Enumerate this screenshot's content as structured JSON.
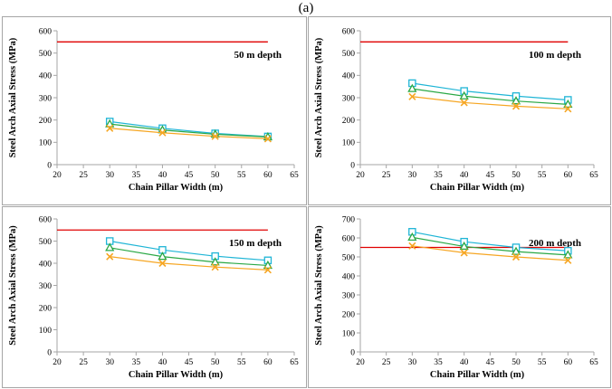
{
  "figure_label": "(a)",
  "colors": {
    "limit": "#e00000",
    "series_square": "#1fb5d6",
    "series_triangle": "#2aa845",
    "series_cross": "#f6a623",
    "frame": "#a6a6a6"
  },
  "chart_data": [
    {
      "type": "line",
      "title": "50 m depth",
      "xlabel": "Chain Pillar Width (m)",
      "ylabel": "Steel Arch Axial Stress (MPa)",
      "xlim": [
        20,
        65
      ],
      "ylim": [
        0,
        600
      ],
      "xticks": [
        20,
        25,
        30,
        35,
        40,
        45,
        50,
        55,
        60,
        65
      ],
      "yticks": [
        0,
        100,
        200,
        300,
        400,
        500,
        600
      ],
      "limit_line": {
        "value": 550,
        "x": [
          20,
          60
        ]
      },
      "x": [
        30,
        40,
        50,
        60
      ],
      "series": [
        {
          "marker": "square",
          "values": [
            193,
            163,
            140,
            126
          ]
        },
        {
          "marker": "triangle",
          "values": [
            182,
            155,
            136,
            124
          ]
        },
        {
          "marker": "cross",
          "values": [
            163,
            143,
            127,
            116
          ]
        }
      ]
    },
    {
      "type": "line",
      "title": "100 m depth",
      "xlabel": "Chain Pillar Width (m)",
      "ylabel": "Steel Arch Axial Stress (MPa)",
      "xlim": [
        20,
        65
      ],
      "ylim": [
        0,
        600
      ],
      "xticks": [
        20,
        25,
        30,
        35,
        40,
        45,
        50,
        55,
        60,
        65
      ],
      "yticks": [
        0,
        100,
        200,
        300,
        400,
        500,
        600
      ],
      "limit_line": {
        "value": 550,
        "x": [
          20,
          60
        ]
      },
      "x": [
        30,
        40,
        50,
        60
      ],
      "series": [
        {
          "marker": "square",
          "values": [
            365,
            330,
            307,
            290
          ]
        },
        {
          "marker": "triangle",
          "values": [
            340,
            307,
            285,
            270
          ]
        },
        {
          "marker": "cross",
          "values": [
            305,
            278,
            262,
            250
          ]
        }
      ]
    },
    {
      "type": "line",
      "title": "150 m depth",
      "xlabel": "Chain Pillar Width (m)",
      "ylabel": "Steel Arch Axial Stress (MPa)",
      "xlim": [
        20,
        65
      ],
      "ylim": [
        0,
        600
      ],
      "xticks": [
        20,
        25,
        30,
        35,
        40,
        45,
        50,
        55,
        60,
        65
      ],
      "yticks": [
        0,
        100,
        200,
        300,
        400,
        500,
        600
      ],
      "limit_line": {
        "value": 550,
        "x": [
          20,
          60
        ]
      },
      "x": [
        30,
        40,
        50,
        60
      ],
      "series": [
        {
          "marker": "square",
          "values": [
            500,
            460,
            432,
            413
          ]
        },
        {
          "marker": "triangle",
          "values": [
            470,
            430,
            405,
            390
          ]
        },
        {
          "marker": "cross",
          "values": [
            430,
            400,
            383,
            370
          ]
        }
      ]
    },
    {
      "type": "line",
      "title": "200 m depth",
      "xlabel": "Chain Pillar Width (m)",
      "ylabel": "Steel Arch Axial Stress (MPa)",
      "xlim": [
        20,
        65
      ],
      "ylim": [
        0,
        700
      ],
      "xticks": [
        20,
        25,
        30,
        35,
        40,
        45,
        50,
        55,
        60,
        65
      ],
      "yticks": [
        0,
        100,
        200,
        300,
        400,
        500,
        600,
        700
      ],
      "limit_line": {
        "value": 550,
        "x": [
          20,
          60
        ]
      },
      "x": [
        30,
        40,
        50,
        60
      ],
      "series": [
        {
          "marker": "square",
          "values": [
            632,
            580,
            550,
            532
          ]
        },
        {
          "marker": "triangle",
          "values": [
            603,
            555,
            528,
            510
          ]
        },
        {
          "marker": "cross",
          "values": [
            558,
            522,
            500,
            482
          ]
        }
      ]
    }
  ]
}
